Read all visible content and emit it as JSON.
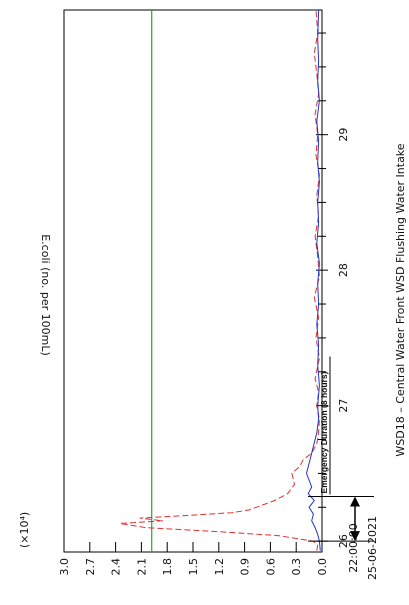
{
  "chart_data": {
    "type": "line",
    "title": "WSD18 – Central Water Front WSD Flushing Water Intake",
    "ylabel": "E.coli (no. per 100mL)",
    "y_multiplier": "(×10⁴)",
    "y_ticks": [
      "3.0",
      "2.7",
      "2.4",
      "2.1",
      "1.8",
      "1.5",
      "1.2",
      "0.9",
      "0.6",
      "0.3",
      "0.0"
    ],
    "y_tick_values": [
      3.0,
      2.7,
      2.4,
      2.1,
      1.8,
      1.5,
      1.2,
      0.9,
      0.6,
      0.3,
      0.0
    ],
    "ylim": [
      0,
      3.0
    ],
    "x_start_time": "22:00:00",
    "x_start_date": "25-06-2021",
    "x_ticks": [
      "26",
      "27",
      "28",
      "29"
    ],
    "x_tick_values": [
      26,
      27,
      28,
      29
    ],
    "xlim": [
      25.92,
      29.92
    ],
    "threshold": {
      "value": 1.98,
      "color": "#22aa22"
    },
    "annotation": {
      "label": "Emergency Duration (8 hours)",
      "x_start": 26.0,
      "x_end": 26.33
    },
    "series": [
      {
        "color": "#e03030",
        "style": "dashed",
        "x": [
          25.93,
          25.97,
          26.0,
          26.04,
          26.07,
          26.1,
          26.13,
          26.15,
          26.17,
          26.19,
          26.21,
          26.23,
          26.26,
          26.3,
          26.35,
          26.42,
          26.5,
          26.55,
          26.6,
          26.65,
          26.72,
          26.8,
          26.9,
          27.0,
          27.1,
          27.2,
          27.35,
          27.5,
          27.65,
          27.8,
          27.95,
          28.1,
          28.25,
          28.4,
          28.55,
          28.7,
          28.85,
          29.0,
          29.15,
          29.3,
          29.45,
          29.6,
          29.75,
          29.92
        ],
        "values": [
          0.06,
          0.05,
          0.1,
          0.5,
          1.2,
          2.05,
          2.35,
          1.85,
          2.12,
          1.55,
          1.05,
          0.85,
          0.72,
          0.55,
          0.4,
          0.32,
          0.35,
          0.26,
          0.22,
          0.12,
          0.06,
          0.04,
          0.03,
          0.06,
          0.04,
          0.08,
          0.03,
          0.07,
          0.04,
          0.09,
          0.03,
          0.05,
          0.08,
          0.04,
          0.06,
          0.03,
          0.07,
          0.05,
          0.08,
          0.04,
          0.06,
          0.09,
          0.05,
          0.07
        ]
      },
      {
        "color": "#2233cc",
        "style": "solid",
        "x": [
          25.93,
          26.0,
          26.05,
          26.1,
          26.15,
          26.2,
          26.25,
          26.3,
          26.35,
          26.4,
          26.5,
          26.6,
          26.7,
          26.8,
          26.9,
          27.0,
          27.15,
          27.3,
          27.45,
          27.6,
          27.75,
          27.9,
          28.05,
          28.2,
          28.35,
          28.5,
          28.65,
          28.8,
          28.95,
          29.1,
          29.25,
          29.4,
          29.55,
          29.7,
          29.92
        ],
        "values": [
          0.02,
          0.03,
          0.05,
          0.08,
          0.12,
          0.1,
          0.15,
          0.09,
          0.16,
          0.12,
          0.18,
          0.14,
          0.1,
          0.06,
          0.04,
          0.05,
          0.03,
          0.05,
          0.04,
          0.06,
          0.04,
          0.05,
          0.03,
          0.06,
          0.04,
          0.05,
          0.03,
          0.05,
          0.04,
          0.06,
          0.03,
          0.05,
          0.04,
          0.05,
          0.04
        ]
      }
    ]
  }
}
